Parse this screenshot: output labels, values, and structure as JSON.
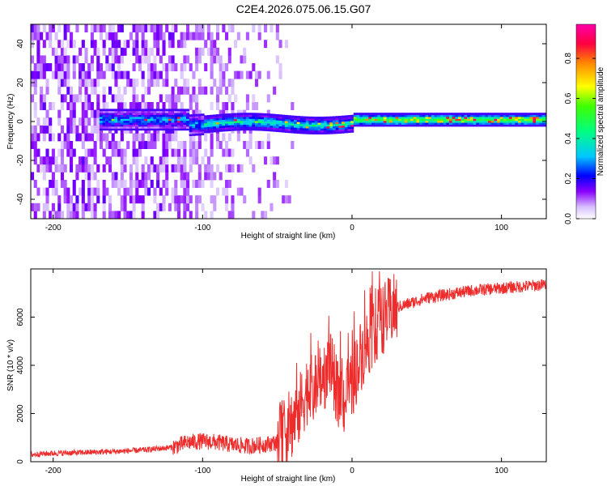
{
  "title": "C2E4.2026.075.06.15.G07",
  "colors": {
    "snr_line": "#ee2c2c",
    "axis": "#000000",
    "colorbar": [
      "#ffffff",
      "#c9a0ff",
      "#7a00ff",
      "#0000ff",
      "#00c8ff",
      "#00ff7a",
      "#66ff00",
      "#ffff00",
      "#ff8800",
      "#ff0044",
      "#ff00aa"
    ]
  },
  "chart_data": [
    {
      "type": "heatmap",
      "name": "spectrogram",
      "xlabel": "Height of straight line (km)",
      "ylabel": "Frequency (Hz)",
      "xlim": [
        -215,
        130
      ],
      "ylim": [
        -50,
        50
      ],
      "x_ticks": [
        -200,
        -100,
        0,
        100
      ],
      "y_ticks": [
        -40,
        -20,
        0,
        20,
        40
      ],
      "colorbar": {
        "label": "Normalized spectral amplitude",
        "range": [
          0.0,
          0.97
        ],
        "ticks": [
          0.0,
          0.2,
          0.4,
          0.6,
          0.8
        ]
      },
      "description_points": [
        {
          "x": -200,
          "amplitude_center": 0.2
        },
        {
          "x": -150,
          "amplitude_center": 0.3
        },
        {
          "x": -100,
          "amplitude_center": 0.45
        },
        {
          "x": -50,
          "amplitude_center": 0.5
        },
        {
          "x": 0,
          "amplitude_center": 0.8
        },
        {
          "x": 50,
          "amplitude_center": 0.65
        },
        {
          "x": 100,
          "amplitude_center": 0.7
        }
      ]
    },
    {
      "type": "line",
      "name": "snr",
      "xlabel": "Height of straight line (km)",
      "ylabel": "SNR (10 * v/v)",
      "xlim": [
        -215,
        130
      ],
      "ylim": [
        0,
        8000
      ],
      "x_ticks": [
        -200,
        -100,
        0,
        100
      ],
      "y_ticks": [
        0,
        2000,
        4000,
        6000
      ],
      "x": [
        -215,
        -200,
        -180,
        -160,
        -140,
        -120,
        -110,
        -100,
        -90,
        -80,
        -70,
        -60,
        -50,
        -45,
        -40,
        -35,
        -30,
        -25,
        -20,
        -15,
        -10,
        -5,
        0,
        5,
        10,
        15,
        20,
        25,
        30,
        40,
        50,
        60,
        70,
        80,
        90,
        100,
        110,
        120,
        130
      ],
      "values": [
        300,
        350,
        380,
        420,
        480,
        600,
        800,
        850,
        800,
        700,
        650,
        700,
        800,
        1300,
        1600,
        2200,
        3000,
        2900,
        3400,
        4000,
        3000,
        2500,
        3200,
        4300,
        4900,
        5500,
        5900,
        6200,
        6400,
        6600,
        6800,
        6900,
        7000,
        7100,
        7150,
        7200,
        7250,
        7300,
        7350
      ]
    }
  ]
}
